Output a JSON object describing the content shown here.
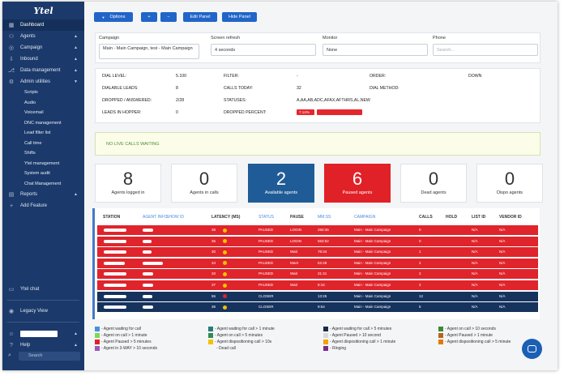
{
  "sidebar": {
    "logo": "Ytel",
    "items": [
      {
        "icon": "dashboard-icon",
        "glyph": "▦",
        "label": "Dashboard",
        "active": true
      },
      {
        "icon": "agents-icon",
        "glyph": "⚇",
        "label": "Agents",
        "caret": "▲"
      },
      {
        "icon": "campaign-icon",
        "glyph": "◎",
        "label": "Campaign",
        "caret": "▲"
      },
      {
        "icon": "inbound-icon",
        "glyph": "⇩",
        "label": "Inbound",
        "caret": "▲"
      },
      {
        "icon": "data-icon",
        "glyph": "⎇",
        "label": "Data management",
        "caret": "▲"
      },
      {
        "icon": "admin-icon",
        "glyph": "⚙",
        "label": "Admin utilities",
        "caret": "▼"
      }
    ],
    "sub_items": [
      "Scripts",
      "Audio",
      "Voicemail",
      "DNC management",
      "Lead filter list",
      "Call time",
      "Shifts",
      "Ytel management",
      "System audit",
      "Chat Management"
    ],
    "items2": [
      {
        "icon": "reports-icon",
        "glyph": "▤",
        "label": "Reports",
        "caret": "▲"
      },
      {
        "icon": "add-icon",
        "glyph": "+",
        "label": "Add Feature"
      }
    ],
    "bottom": {
      "ytel_chat": "Ytel chat",
      "legacy_view": "Legacy View",
      "help": "Help",
      "search_placeholder": "Search"
    }
  },
  "toolbar": {
    "options": "Options",
    "plus": "+",
    "minus": "−",
    "edit_panel": "Edit Panel",
    "hide_panel": "Hide Panel"
  },
  "filters": {
    "campaign_label": "Campaign",
    "campaign_value": "Main - Main Campaign, test - Main Campaign",
    "refresh_label": "Screen refresh",
    "refresh_value": "4 seconds",
    "monitor_label": "Monitor",
    "monitor_value": "None",
    "phone_label": "Phone",
    "phone_placeholder": "Search..."
  },
  "stats": {
    "dial_level_label": "DIAL LEVEL:",
    "dial_level": "5.100",
    "filter_label": "FILTER:",
    "filter": "-",
    "order_label": "ORDER:",
    "order": "DOWN",
    "dialable_label": "DIALABLE LEADS:",
    "dialable": "8",
    "calls_today_label": "CALLS TODAY:",
    "calls_today": "32",
    "dial_method_label": "DIAL METHOD:",
    "dropped_label": "DROPPED / ANSWERED:",
    "dropped": "2/28",
    "statuses_label": "STATUSES:",
    "statuses": "A,AA,AB,ADC,AFAX,AFTHRS,AL,NEW",
    "hopper_label": "LEADS IN HOPPER:",
    "hopper": "0",
    "dropped_pct_label": "DROPPED PERCENT:",
    "dropped_pct": "7.14%"
  },
  "alert": "NO LIVE CALLS WAITING",
  "cards": [
    {
      "num": "8",
      "label": "Agents logged in",
      "style": "plain"
    },
    {
      "num": "0",
      "label": "Agents in calls",
      "style": "plain"
    },
    {
      "num": "2",
      "label": "Available agents",
      "style": "blue"
    },
    {
      "num": "6",
      "label": "Paused agents",
      "style": "red"
    },
    {
      "num": "0",
      "label": "Dead agents",
      "style": "plain"
    },
    {
      "num": "0",
      "label": "Dispo agents",
      "style": "plain"
    }
  ],
  "table": {
    "headers": {
      "station": "STATION",
      "agent_info": "AGENT INFO",
      "show_id": "SHOW ID",
      "latency": "LATENCY (MS)",
      "status": "STATUS",
      "pause": "PAUSE",
      "mmss": "MM:SS",
      "campaign": "CAMPAIGN",
      "calls": "CALLS",
      "hold": "HOLD",
      "list_id": "LIST ID",
      "vendor_id": "VENDOR ID"
    },
    "rows": [
      {
        "color": "red",
        "latency": "38",
        "dot": "#f2c200",
        "status": "PAUSED",
        "pause": "LOGIN",
        "mmss": "250:36",
        "campaign": "Main - Main Campaign",
        "calls": "0",
        "list_id": "N/A",
        "vendor_id": "N/A"
      },
      {
        "color": "red",
        "latency": "36",
        "dot": "#f2c200",
        "status": "PAUSED",
        "pause": "LOGIN",
        "mmss": "553:52",
        "campaign": "Main - Main Campaign",
        "calls": "0",
        "list_id": "N/A",
        "vendor_id": "N/A"
      },
      {
        "color": "red",
        "latency": "30",
        "dot": "#f2c200",
        "status": "PAUSED",
        "pause": "Wait",
        "mmss": "78:34",
        "campaign": "Main - Main Campaign",
        "calls": "1",
        "list_id": "N/A",
        "vendor_id": "N/A"
      },
      {
        "color": "red",
        "latency": "34",
        "dot": "#f2c200",
        "status": "PAUSED",
        "pause": "Meet",
        "mmss": "52:28",
        "campaign": "Main - Main Campaign",
        "calls": "4",
        "list_id": "N/A",
        "vendor_id": "N/A"
      },
      {
        "color": "red",
        "latency": "33",
        "dot": "#f2c200",
        "status": "PAUSED",
        "pause": "Wait",
        "mmss": "31:41",
        "campaign": "Main - Main Campaign",
        "calls": "2",
        "list_id": "N/A",
        "vendor_id": "N/A"
      },
      {
        "color": "red",
        "latency": "37",
        "dot": "#f2c200",
        "status": "PAUSED",
        "pause": "Wait",
        "mmss": "8:16",
        "campaign": "Main - Main Campaign",
        "calls": "2",
        "list_id": "N/A",
        "vendor_id": "N/A"
      },
      {
        "color": "navy",
        "latency": "55",
        "dot": "#e0242c",
        "status": "CLOSER",
        "pause": "",
        "mmss": "13:25",
        "campaign": "Main - Main Campaign",
        "calls": "12",
        "list_id": "N/A",
        "vendor_id": "N/A"
      },
      {
        "color": "navy",
        "latency": "36",
        "dot": "#f2c200",
        "status": "CLOSER",
        "pause": "",
        "mmss": "9:54",
        "campaign": "Main - Main Campaign",
        "calls": "5",
        "list_id": "N/A",
        "vendor_id": "N/A"
      }
    ]
  },
  "legend": [
    {
      "color": "#4a90d9",
      "text": "- Agent waiting for call"
    },
    {
      "color": "#2a7a7a",
      "text": "- Agent waiting for call > 1 minute"
    },
    {
      "color": "#1b2a4a",
      "text": "- Agent waiting for call > 5 minutes"
    },
    {
      "color": "#3a8a3a",
      "text": "- Agent on call > 10 seconds"
    },
    {
      "color": "#7ed957",
      "text": "- Agent on call > 1 minute"
    },
    {
      "color": "#2e8b57",
      "text": "- Agent on call > 5 minutes"
    },
    {
      "color": "#d9d9d9",
      "text": "- Agent Paused > 10 second"
    },
    {
      "color": "#b5651d",
      "text": "- Agent Paused > 1 minute"
    },
    {
      "color": "#e02128",
      "text": "- Agent Paused > 5 minutes"
    },
    {
      "color": "#f2c200",
      "text": "- Agent dispositioning call > 10s"
    },
    {
      "color": "#f2a100",
      "text": "- Agent dispositioning call > 1 minute"
    },
    {
      "color": "#e07b00",
      "text": "- Agent dispositioning call > 5 minute"
    },
    {
      "color": "#9b59b6",
      "text": "- Agent in 3-WAY > 10 seconds"
    },
    {
      "color": "",
      "text": "- Dead call"
    },
    {
      "color": "#7a2a8a",
      "text": "- Ringing"
    }
  ]
}
